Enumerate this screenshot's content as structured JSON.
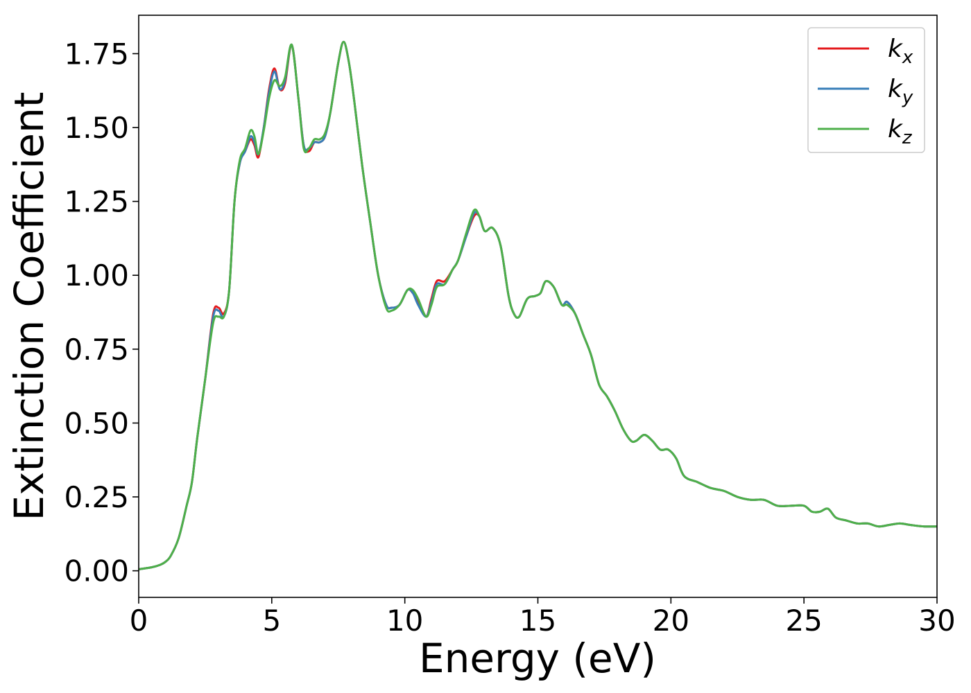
{
  "chart_data": {
    "type": "line",
    "title": "",
    "xlabel": "Energy (eV)",
    "ylabel": "Extinction Coefficient",
    "xlim": [
      0,
      30
    ],
    "ylim": [
      -0.09,
      1.88
    ],
    "xticks": [
      0,
      5,
      10,
      15,
      20,
      25,
      30
    ],
    "xtick_labels": [
      "0",
      "5",
      "10",
      "15",
      "20",
      "25",
      "30"
    ],
    "yticks": [
      0,
      0.25,
      0.5,
      0.75,
      1.0,
      1.25,
      1.5,
      1.75
    ],
    "ytick_labels": [
      "0.00",
      "0.25",
      "0.50",
      "0.75",
      "1.00",
      "1.25",
      "1.50",
      "1.75"
    ],
    "grid": false,
    "legend_position": "top-right",
    "series": [
      {
        "name": "k_x",
        "label_base": "k",
        "label_sub": "x",
        "color": "#e41a1c",
        "x": [
          0,
          0.5,
          0.8,
          1.0,
          1.2,
          1.5,
          1.8,
          2.0,
          2.2,
          2.5,
          2.8,
          3.0,
          3.2,
          3.4,
          3.6,
          3.8,
          4.0,
          4.2,
          4.35,
          4.5,
          4.7,
          4.9,
          5.1,
          5.3,
          5.5,
          5.75,
          6.0,
          6.2,
          6.4,
          6.6,
          6.8,
          7.0,
          7.2,
          7.5,
          7.7,
          7.9,
          8.1,
          8.4,
          8.7,
          9.0,
          9.3,
          9.5,
          9.8,
          10.1,
          10.3,
          10.5,
          10.8,
          11.0,
          11.2,
          11.5,
          11.8,
          12.0,
          12.3,
          12.6,
          12.8,
          13.0,
          13.3,
          13.6,
          13.9,
          14.1,
          14.3,
          14.6,
          14.9,
          15.1,
          15.3,
          15.6,
          15.9,
          16.1,
          16.4,
          16.7,
          17.0,
          17.3,
          17.6,
          17.9,
          18.2,
          18.5,
          18.7,
          19.0,
          19.3,
          19.6,
          19.9,
          20.2,
          20.5,
          21.0,
          21.5,
          22.0,
          22.5,
          23.0,
          23.5,
          24.0,
          24.5,
          25.0,
          25.3,
          25.6,
          25.9,
          26.2,
          26.6,
          27.0,
          27.4,
          27.8,
          28.2,
          28.6,
          29.0,
          29.5,
          30.0
        ],
        "values": [
          0.005,
          0.012,
          0.02,
          0.03,
          0.05,
          0.11,
          0.22,
          0.3,
          0.45,
          0.65,
          0.87,
          0.89,
          0.87,
          0.95,
          1.25,
          1.38,
          1.42,
          1.46,
          1.44,
          1.4,
          1.5,
          1.63,
          1.7,
          1.63,
          1.65,
          1.78,
          1.6,
          1.44,
          1.42,
          1.45,
          1.45,
          1.47,
          1.55,
          1.72,
          1.79,
          1.72,
          1.59,
          1.37,
          1.18,
          1.0,
          0.9,
          0.89,
          0.9,
          0.95,
          0.94,
          0.91,
          0.86,
          0.92,
          0.98,
          0.98,
          1.02,
          1.05,
          1.13,
          1.2,
          1.2,
          1.15,
          1.16,
          1.1,
          0.93,
          0.87,
          0.86,
          0.92,
          0.93,
          0.94,
          0.98,
          0.96,
          0.9,
          0.91,
          0.87,
          0.8,
          0.73,
          0.63,
          0.59,
          0.54,
          0.48,
          0.44,
          0.44,
          0.46,
          0.44,
          0.41,
          0.41,
          0.38,
          0.32,
          0.3,
          0.28,
          0.27,
          0.25,
          0.24,
          0.24,
          0.22,
          0.22,
          0.22,
          0.2,
          0.2,
          0.21,
          0.18,
          0.17,
          0.16,
          0.16,
          0.15,
          0.155,
          0.16,
          0.155,
          0.15,
          0.15
        ]
      },
      {
        "name": "k_y",
        "label_base": "k",
        "label_sub": "y",
        "color": "#377eb8",
        "x": [
          0,
          0.5,
          0.8,
          1.0,
          1.2,
          1.5,
          1.8,
          2.0,
          2.2,
          2.5,
          2.8,
          3.0,
          3.2,
          3.4,
          3.6,
          3.8,
          4.0,
          4.2,
          4.35,
          4.5,
          4.7,
          4.9,
          5.1,
          5.3,
          5.5,
          5.75,
          6.0,
          6.2,
          6.4,
          6.6,
          6.8,
          7.0,
          7.2,
          7.5,
          7.7,
          7.9,
          8.1,
          8.4,
          8.7,
          9.0,
          9.3,
          9.5,
          9.8,
          10.1,
          10.3,
          10.5,
          10.8,
          11.0,
          11.2,
          11.5,
          11.8,
          12.0,
          12.3,
          12.6,
          12.8,
          13.0,
          13.3,
          13.6,
          13.9,
          14.1,
          14.3,
          14.6,
          14.9,
          15.1,
          15.3,
          15.6,
          15.9,
          16.1,
          16.4,
          16.7,
          17.0,
          17.3,
          17.6,
          17.9,
          18.2,
          18.5,
          18.7,
          19.0,
          19.3,
          19.6,
          19.9,
          20.2,
          20.5,
          21.0,
          21.5,
          22.0,
          22.5,
          23.0,
          23.5,
          24.0,
          24.5,
          25.0,
          25.3,
          25.6,
          25.9,
          26.2,
          26.6,
          27.0,
          27.4,
          27.8,
          28.2,
          28.6,
          29.0,
          29.5,
          30.0
        ],
        "values": [
          0.005,
          0.012,
          0.02,
          0.03,
          0.05,
          0.11,
          0.22,
          0.3,
          0.45,
          0.65,
          0.86,
          0.88,
          0.86,
          0.95,
          1.25,
          1.38,
          1.42,
          1.47,
          1.45,
          1.41,
          1.5,
          1.62,
          1.69,
          1.63,
          1.66,
          1.78,
          1.6,
          1.44,
          1.43,
          1.45,
          1.45,
          1.47,
          1.55,
          1.72,
          1.79,
          1.72,
          1.59,
          1.37,
          1.18,
          1.0,
          0.9,
          0.89,
          0.9,
          0.95,
          0.94,
          0.9,
          0.86,
          0.91,
          0.97,
          0.97,
          1.02,
          1.05,
          1.13,
          1.21,
          1.2,
          1.15,
          1.16,
          1.1,
          0.93,
          0.87,
          0.86,
          0.92,
          0.93,
          0.94,
          0.98,
          0.96,
          0.9,
          0.91,
          0.87,
          0.8,
          0.73,
          0.63,
          0.59,
          0.54,
          0.48,
          0.44,
          0.44,
          0.46,
          0.44,
          0.41,
          0.41,
          0.38,
          0.32,
          0.3,
          0.28,
          0.27,
          0.25,
          0.24,
          0.24,
          0.22,
          0.22,
          0.22,
          0.2,
          0.2,
          0.21,
          0.18,
          0.17,
          0.16,
          0.16,
          0.15,
          0.155,
          0.16,
          0.155,
          0.15,
          0.15
        ]
      },
      {
        "name": "k_z",
        "label_base": "k",
        "label_sub": "z",
        "color": "#4daf4a",
        "x": [
          0,
          0.5,
          0.8,
          1.0,
          1.2,
          1.5,
          1.8,
          2.0,
          2.2,
          2.5,
          2.8,
          3.0,
          3.2,
          3.4,
          3.6,
          3.8,
          4.0,
          4.2,
          4.35,
          4.5,
          4.7,
          4.9,
          5.1,
          5.3,
          5.5,
          5.75,
          6.0,
          6.2,
          6.4,
          6.6,
          6.8,
          7.0,
          7.2,
          7.5,
          7.7,
          7.9,
          8.1,
          8.4,
          8.7,
          9.0,
          9.3,
          9.5,
          9.8,
          10.1,
          10.3,
          10.5,
          10.8,
          11.0,
          11.2,
          11.5,
          11.8,
          12.0,
          12.3,
          12.6,
          12.8,
          13.0,
          13.3,
          13.6,
          13.9,
          14.1,
          14.3,
          14.6,
          14.9,
          15.1,
          15.3,
          15.6,
          15.9,
          16.1,
          16.4,
          16.7,
          17.0,
          17.3,
          17.6,
          17.9,
          18.2,
          18.5,
          18.7,
          19.0,
          19.3,
          19.6,
          19.9,
          20.2,
          20.5,
          21.0,
          21.5,
          22.0,
          22.5,
          23.0,
          23.5,
          24.0,
          24.5,
          25.0,
          25.3,
          25.6,
          25.9,
          26.2,
          26.6,
          27.0,
          27.4,
          27.8,
          28.2,
          28.6,
          29.0,
          29.5,
          30.0
        ],
        "values": [
          0.005,
          0.012,
          0.02,
          0.03,
          0.05,
          0.11,
          0.22,
          0.3,
          0.45,
          0.65,
          0.84,
          0.86,
          0.86,
          0.95,
          1.25,
          1.39,
          1.43,
          1.49,
          1.47,
          1.41,
          1.49,
          1.6,
          1.66,
          1.64,
          1.67,
          1.78,
          1.6,
          1.43,
          1.43,
          1.46,
          1.46,
          1.48,
          1.55,
          1.72,
          1.79,
          1.72,
          1.59,
          1.37,
          1.18,
          1.0,
          0.89,
          0.88,
          0.9,
          0.95,
          0.95,
          0.92,
          0.86,
          0.9,
          0.96,
          0.97,
          1.02,
          1.05,
          1.14,
          1.22,
          1.2,
          1.15,
          1.16,
          1.1,
          0.93,
          0.87,
          0.86,
          0.92,
          0.93,
          0.94,
          0.98,
          0.96,
          0.9,
          0.9,
          0.87,
          0.8,
          0.73,
          0.63,
          0.59,
          0.54,
          0.48,
          0.44,
          0.44,
          0.46,
          0.44,
          0.41,
          0.41,
          0.38,
          0.32,
          0.3,
          0.28,
          0.27,
          0.25,
          0.24,
          0.24,
          0.22,
          0.22,
          0.22,
          0.2,
          0.2,
          0.21,
          0.18,
          0.17,
          0.16,
          0.16,
          0.15,
          0.155,
          0.16,
          0.155,
          0.15,
          0.15
        ]
      }
    ]
  }
}
